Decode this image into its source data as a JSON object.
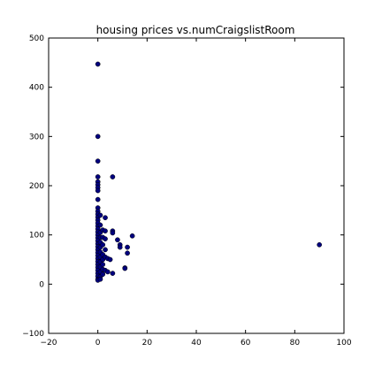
{
  "chart_data": {
    "type": "scatter",
    "title": "housing prices vs.numCraigslistRoom",
    "xlabel": "",
    "ylabel": "",
    "xlim": [
      -20,
      100
    ],
    "ylim": [
      -100,
      500
    ],
    "xticks": [
      -20,
      0,
      20,
      40,
      60,
      80,
      100
    ],
    "yticks": [
      -100,
      0,
      100,
      200,
      300,
      400,
      500
    ],
    "xtick_labels": [
      "−20",
      "0",
      "20",
      "40",
      "60",
      "80",
      "100"
    ],
    "ytick_labels": [
      "−100",
      "0",
      "100",
      "200",
      "300",
      "400",
      "500"
    ],
    "grid": false,
    "marker_color": "#00007f",
    "points": [
      [
        0,
        447
      ],
      [
        0,
        300
      ],
      [
        0,
        250
      ],
      [
        0,
        218
      ],
      [
        0,
        208
      ],
      [
        0,
        202
      ],
      [
        0,
        196
      ],
      [
        0,
        190
      ],
      [
        0,
        172
      ],
      [
        0,
        155
      ],
      [
        0,
        148
      ],
      [
        0,
        142
      ],
      [
        0,
        136
      ],
      [
        0,
        130
      ],
      [
        0,
        124
      ],
      [
        0,
        118
      ],
      [
        0,
        112
      ],
      [
        0,
        106
      ],
      [
        0,
        100
      ],
      [
        0,
        94
      ],
      [
        0,
        88
      ],
      [
        0,
        82
      ],
      [
        0,
        76
      ],
      [
        0,
        70
      ],
      [
        0,
        64
      ],
      [
        0,
        58
      ],
      [
        0,
        52
      ],
      [
        0,
        46
      ],
      [
        0,
        40
      ],
      [
        0,
        34
      ],
      [
        0,
        28
      ],
      [
        0,
        22
      ],
      [
        0,
        16
      ],
      [
        0,
        10
      ],
      [
        0,
        8
      ],
      [
        1,
        140
      ],
      [
        1,
        120
      ],
      [
        1,
        105
      ],
      [
        1,
        95
      ],
      [
        1,
        85
      ],
      [
        1,
        75
      ],
      [
        1,
        65
      ],
      [
        1,
        55
      ],
      [
        1,
        45
      ],
      [
        1,
        35
      ],
      [
        1,
        25
      ],
      [
        1,
        15
      ],
      [
        1,
        10
      ],
      [
        2,
        110
      ],
      [
        2,
        95
      ],
      [
        2,
        80
      ],
      [
        2,
        60
      ],
      [
        2,
        50
      ],
      [
        2,
        40
      ],
      [
        2,
        30
      ],
      [
        2,
        20
      ],
      [
        3,
        135
      ],
      [
        3,
        108
      ],
      [
        3,
        92
      ],
      [
        3,
        70
      ],
      [
        3,
        55
      ],
      [
        3,
        28
      ],
      [
        4,
        52
      ],
      [
        4,
        25
      ],
      [
        5,
        50
      ],
      [
        6,
        218
      ],
      [
        6,
        108
      ],
      [
        6,
        104
      ],
      [
        6,
        22
      ],
      [
        8,
        90
      ],
      [
        9,
        80
      ],
      [
        9,
        75
      ],
      [
        11,
        33
      ],
      [
        11,
        32
      ],
      [
        12,
        75
      ],
      [
        12,
        63
      ],
      [
        14,
        98
      ],
      [
        90,
        80
      ]
    ]
  }
}
